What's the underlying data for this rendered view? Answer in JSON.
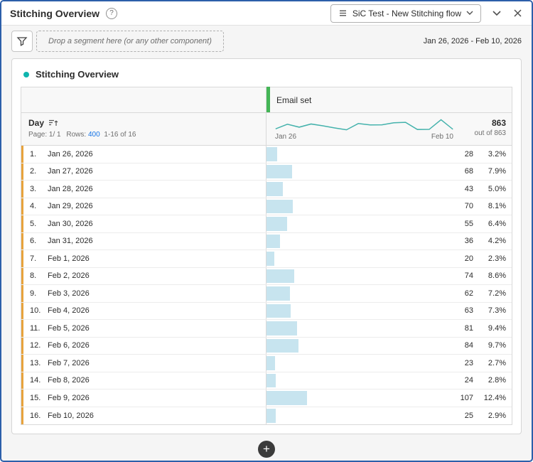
{
  "colors": {
    "accent_teal": "#0fb5ae",
    "column_marker_green": "#44b556",
    "row_marker_orange": "#e8a33d",
    "bar_blue": "#c7e4ef",
    "link_blue": "#1473e6"
  },
  "header": {
    "title": "Stitching Overview",
    "help_icon": "?",
    "flow_selector": "SiC Test - New Stitching flow"
  },
  "toolbar": {
    "drop_placeholder": "Drop a segment here (or any other component)",
    "date_range": "Jan 26, 2026 - Feb 10, 2026"
  },
  "panel": {
    "title": "Stitching Overview"
  },
  "table": {
    "column_header": "Email set",
    "dimension_header": "Day",
    "pagination_page": "Page: 1/ 1",
    "rows_label": "Rows:",
    "rows_value": "400",
    "rows_range": "1-16 of 16",
    "spark_start": "Jan 26",
    "spark_end": "Feb 10",
    "total": "863",
    "total_sub": "out of 863",
    "rows": [
      {
        "num": "1.",
        "date": "Jan 26, 2026",
        "value": 28,
        "pct": "3.2%"
      },
      {
        "num": "2.",
        "date": "Jan 27, 2026",
        "value": 68,
        "pct": "7.9%"
      },
      {
        "num": "3.",
        "date": "Jan 28, 2026",
        "value": 43,
        "pct": "5.0%"
      },
      {
        "num": "4.",
        "date": "Jan 29, 2026",
        "value": 70,
        "pct": "8.1%"
      },
      {
        "num": "5.",
        "date": "Jan 30, 2026",
        "value": 55,
        "pct": "6.4%"
      },
      {
        "num": "6.",
        "date": "Jan 31, 2026",
        "value": 36,
        "pct": "4.2%"
      },
      {
        "num": "7.",
        "date": "Feb 1, 2026",
        "value": 20,
        "pct": "2.3%"
      },
      {
        "num": "8.",
        "date": "Feb 2, 2026",
        "value": 74,
        "pct": "8.6%"
      },
      {
        "num": "9.",
        "date": "Feb 3, 2026",
        "value": 62,
        "pct": "7.2%"
      },
      {
        "num": "10.",
        "date": "Feb 4, 2026",
        "value": 63,
        "pct": "7.3%"
      },
      {
        "num": "11.",
        "date": "Feb 5, 2026",
        "value": 81,
        "pct": "9.4%"
      },
      {
        "num": "12.",
        "date": "Feb 6, 2026",
        "value": 84,
        "pct": "9.7%"
      },
      {
        "num": "13.",
        "date": "Feb 7, 2026",
        "value": 23,
        "pct": "2.7%"
      },
      {
        "num": "14.",
        "date": "Feb 8, 2026",
        "value": 24,
        "pct": "2.8%"
      },
      {
        "num": "15.",
        "date": "Feb 9, 2026",
        "value": 107,
        "pct": "12.4%"
      },
      {
        "num": "16.",
        "date": "Feb 10, 2026",
        "value": 25,
        "pct": "2.9%"
      }
    ]
  }
}
